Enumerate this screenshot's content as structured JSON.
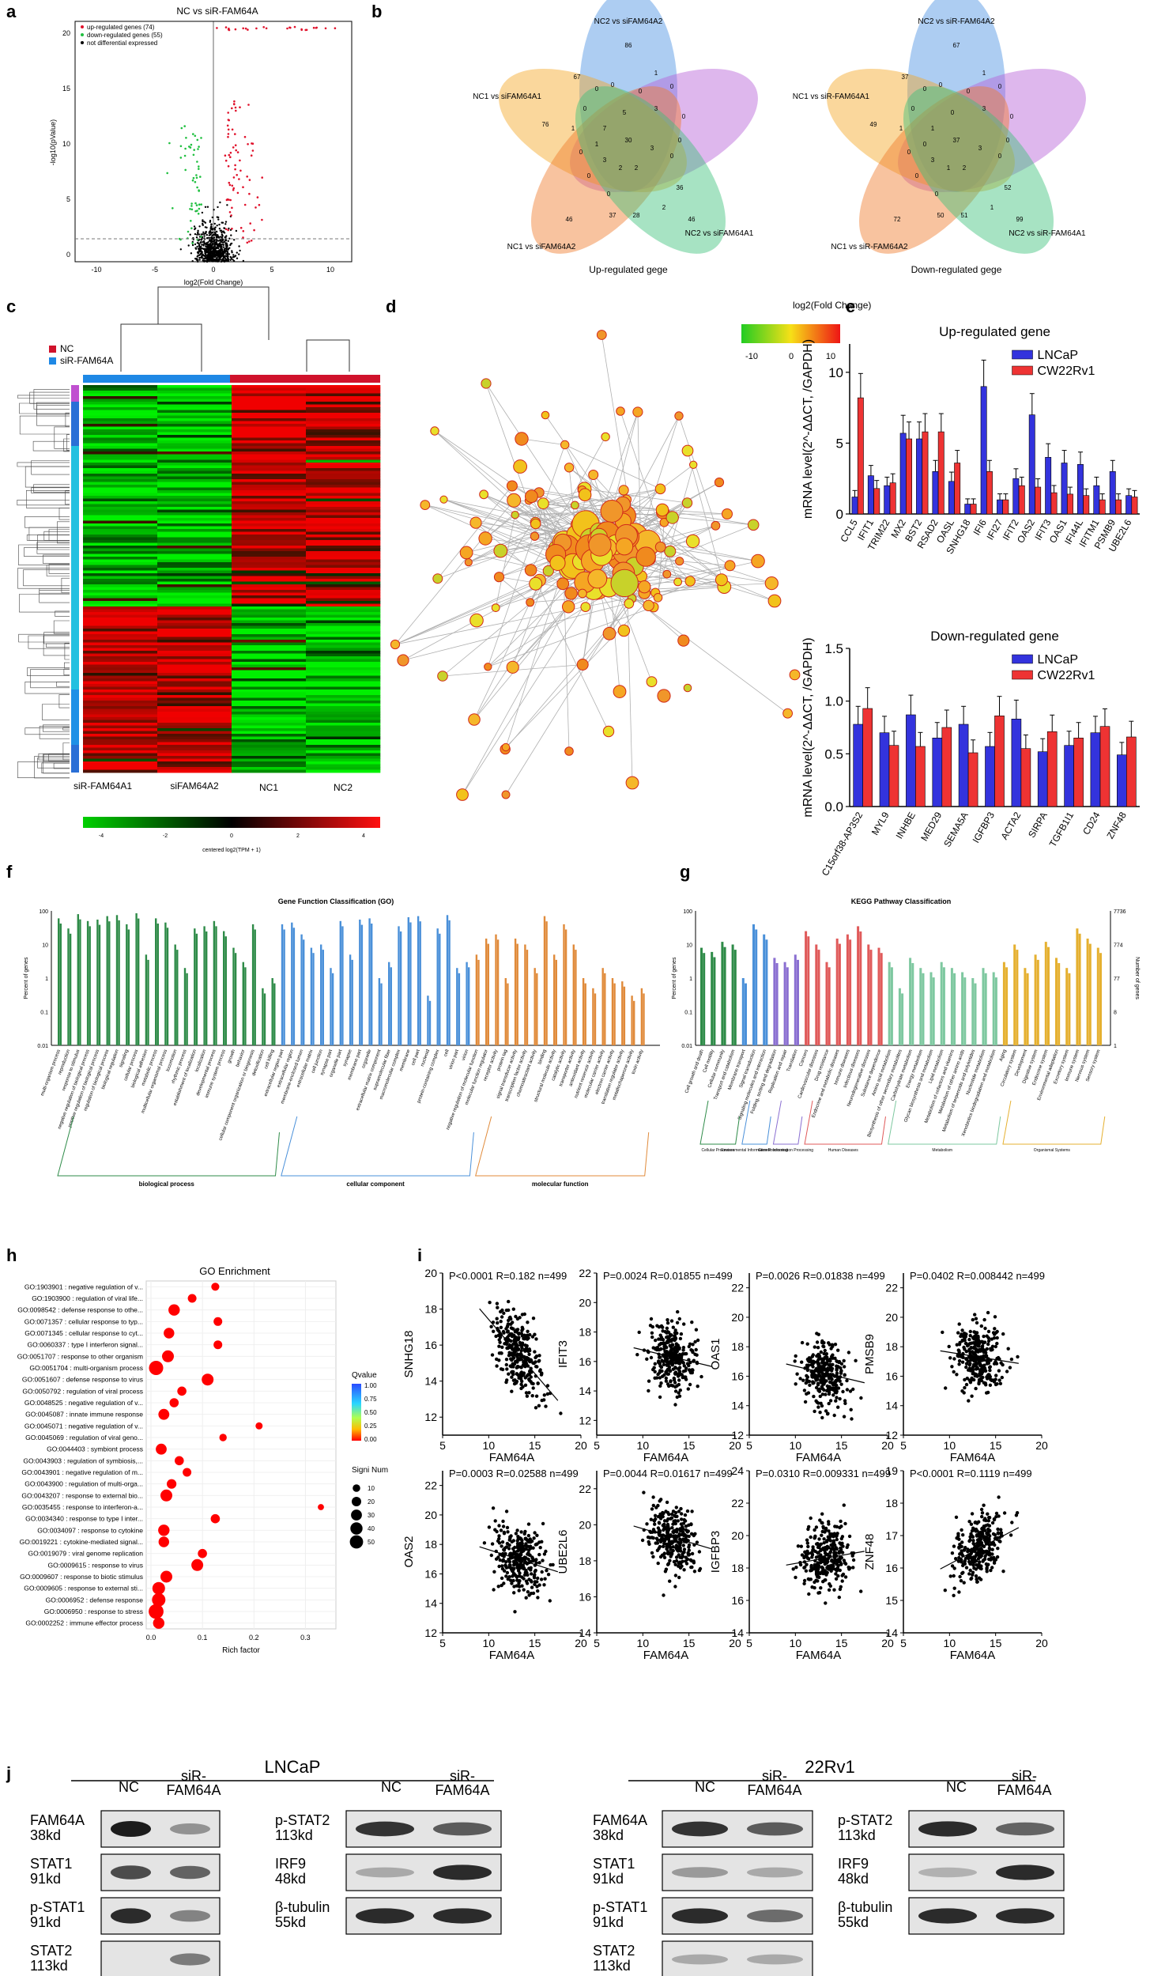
{
  "panel_letters": [
    "a",
    "b",
    "c",
    "d",
    "e",
    "f",
    "g",
    "h",
    "i",
    "j"
  ],
  "a": {
    "title": "NC vs siR-FAM64A",
    "legend": [
      "up-regulated genes (74)",
      "down-regulated genes (55)",
      "not differential expressed"
    ],
    "ylabel": "-log10(pValue)",
    "xlabel": "log2(Fold Change)",
    "xticks": [
      "-10",
      "-5",
      "0",
      "5",
      "10"
    ],
    "yticks": [
      "0",
      "5",
      "10",
      "15",
      "20"
    ],
    "colors": {
      "up": "#e0112b",
      "down": "#20c040",
      "ns": "#000000"
    }
  },
  "b": {
    "up": {
      "labels": [
        "NC2 vs siFAM64A2",
        "NC1 vs siFAM64A1",
        "NC1 vs siFAM64A2",
        "NC2 vs siFAM64A1"
      ],
      "numbers": [
        "86",
        "67",
        "76",
        "46",
        "46",
        "30",
        "1",
        "0",
        "0",
        "0",
        "0",
        "0",
        "1",
        "0",
        "0",
        "0",
        "2",
        "2",
        "3",
        "7",
        "36",
        "37",
        "28",
        "2",
        "0",
        "0",
        "0",
        "3",
        "3",
        "5",
        "1"
      ],
      "caption": "Up-regulated gege"
    },
    "down": {
      "labels": [
        "NC2 vs siR-FAM64A2",
        "NC1 vs siR-FAM64A1",
        "NC1 vs siR-FAM64A2",
        "NC2 vs siR-FAM64A1"
      ],
      "numbers": [
        "67",
        "37",
        "49",
        "72",
        "99",
        "37",
        "1",
        "0",
        "0",
        "0",
        "0",
        "0",
        "1",
        "0",
        "0",
        "0",
        "1",
        "2",
        "3",
        "1",
        "52",
        "50",
        "51",
        "1",
        "0",
        "0",
        "0",
        "3",
        "3",
        "0",
        "0"
      ],
      "caption": "Down-regulated gege"
    },
    "colors": [
      "#4a90e2",
      "#b65fd6",
      "#f5a623",
      "#f07b2a",
      "#3cc07a"
    ]
  },
  "c": {
    "legend": [
      "NC",
      "siR-FAM64A"
    ],
    "columns": [
      "siR-FAM64A1",
      "siFAM64A2",
      "NC1",
      "NC2"
    ],
    "colorbar_ticks": [
      "-4",
      "-2",
      "0",
      "2",
      "4"
    ],
    "colorbar_label": "centered log2(TPM + 1)",
    "colors": {
      "nc": "#d0122b",
      "sir": "#1e88e5"
    }
  },
  "d": {
    "legend_title": "log2(Fold Change)",
    "legend_ticks": [
      "-10",
      "0",
      "10"
    ]
  },
  "e": {
    "chart_data": [
      {
        "type": "bar",
        "title": "Up-regulated gene",
        "ylabel": "mRNA level(2^-ΔΔCT, /GAPDH)",
        "ylim": [
          0,
          12
        ],
        "yticks": [
          "0",
          "5",
          "10"
        ],
        "categories": [
          "CCL5",
          "IFIT1",
          "TRIM22",
          "MX2",
          "BST2",
          "RSAD2",
          "OASL",
          "SNHG18",
          "IFI6",
          "IFI27",
          "IFIT2",
          "OAS2",
          "IFIT3",
          "OAS1",
          "IFI44L",
          "IFITM1",
          "PSMB9",
          "UBE2L6"
        ],
        "series": [
          {
            "name": "LNCaP",
            "values": [
              1.2,
              2.7,
              2.0,
              5.7,
              5.3,
              3.0,
              2.3,
              0.7,
              9.0,
              1.0,
              2.5,
              7.0,
              4.0,
              3.6,
              3.5,
              2.0,
              3.0,
              1.3
            ]
          },
          {
            "name": "CW22Rv1",
            "values": [
              8.2,
              1.8,
              2.2,
              5.3,
              5.8,
              5.8,
              3.6,
              0.7,
              3.0,
              1.0,
              2.0,
              1.9,
              1.5,
              1.4,
              1.3,
              1.0,
              1.0,
              1.2
            ]
          }
        ],
        "colors": [
          "#3333dd",
          "#ee3333"
        ]
      },
      {
        "type": "bar",
        "title": "Down-regulated gene",
        "ylabel": "mRNA level(2^-ΔΔCT, /GAPDH)",
        "ylim": [
          0,
          1.5
        ],
        "yticks": [
          "0.0",
          "0.5",
          "1.0",
          "1.5"
        ],
        "categories": [
          "C15orf38-AP3S2",
          "MYL9",
          "INHBE",
          "MED29",
          "SEMA5A",
          "IGFBP3",
          "ACTA2",
          "SIRPA",
          "TGFB1I1",
          "CD24",
          "ZNF48"
        ],
        "series": [
          {
            "name": "LNCaP",
            "values": [
              0.78,
              0.7,
              0.87,
              0.65,
              0.78,
              0.57,
              0.83,
              0.52,
              0.58,
              0.7,
              0.49
            ]
          },
          {
            "name": "CW22Rv1",
            "values": [
              0.93,
              0.58,
              0.57,
              0.75,
              0.51,
              0.86,
              0.55,
              0.71,
              0.65,
              0.76,
              0.66
            ]
          }
        ],
        "colors": [
          "#3333dd",
          "#ee3333"
        ]
      }
    ]
  },
  "f": {
    "title": "Gene Function Classification (GO)",
    "ylabel": "Percent of genes",
    "yticks": [
      "100",
      "10",
      "1",
      "0.1",
      "0.01"
    ],
    "groups": [
      "biological process",
      "cellular component",
      "molecular function"
    ],
    "colors": [
      "#2e8b48",
      "#4a90d9",
      "#e08a3a"
    ],
    "bp_terms": [
      "multi-organism process",
      "reproduction",
      "response to stimulus",
      "negative regulation of biological process",
      "positive regulation of biological process",
      "regulation of biological process",
      "biological regulation",
      "signaling",
      "cellular process",
      "biological adhesion",
      "metabolic process",
      "multicellular organismal process",
      "locomotion",
      "rhythmic process",
      "establishment of localization",
      "localization",
      "developmental process",
      "immune system process",
      "growth",
      "behavior",
      "cellular component organization or biogenesis",
      "detoxification",
      "cell killing"
    ],
    "cc_terms": [
      "extracellular region part",
      "extracellular region",
      "membrane-enclosed lumen",
      "extracellular matrix",
      "cell junction",
      "synapse part",
      "organelle part",
      "synapse",
      "membrane part",
      "organelle",
      "extracellular matrix component",
      "supramolecular fiber",
      "macromolecular complex",
      "membrane",
      "cell part",
      "nucleoid",
      "protein-containing complex",
      "cell",
      "virion part",
      "virion"
    ],
    "mf_terms": [
      "negative regulation of molecular function",
      "molecular function regulator",
      "receptor activity",
      "protein tag",
      "signal transducer activity",
      "transcription factor activity",
      "chemoattractant activity",
      "binding",
      "structural molecule activity",
      "catalytic activity",
      "transporter activity",
      "antioxidant activity",
      "nutrient reservoir activity",
      "molecular carrier activity",
      "electron carrier activity",
      "translation regulator activity",
      "metallochaperone activity",
      "toxin activity"
    ],
    "bp_values": [
      60,
      30,
      80,
      50,
      55,
      70,
      75,
      40,
      85,
      5,
      60,
      45,
      10,
      2,
      30,
      35,
      50,
      25,
      8,
      3,
      40,
      0.5,
      1
    ],
    "cc_values": [
      40,
      45,
      20,
      8,
      10,
      2,
      50,
      5,
      55,
      60,
      1,
      3,
      35,
      65,
      70,
      0.3,
      30,
      75,
      2,
      3
    ],
    "mf_values": [
      5,
      15,
      20,
      1,
      15,
      10,
      2,
      70,
      5,
      40,
      10,
      1,
      0.5,
      2,
      1,
      0.8,
      0.3,
      0.5
    ]
  },
  "g": {
    "title": "KEGG Pathway Classification",
    "ylabel": "Percent of genes",
    "ylabel_right": "Number of genes",
    "yticks": [
      "100",
      "10",
      "1",
      "0.1",
      "0.01"
    ],
    "yticks_right": [
      "7736",
      "774",
      "77",
      "8",
      "1"
    ],
    "groups": [
      "Cellular Processes",
      "Environmental Information Processing",
      "Genetic Information Processing",
      "Human Diseases",
      "Metabolism",
      "Organismal Systems"
    ],
    "colors": [
      "#2e8b48",
      "#4a90d9",
      "#8a6fd1",
      "#e05a5a",
      "#7ec8a0",
      "#e5b030"
    ],
    "terms": [
      "Cell growth and death",
      "Cell motility",
      "Cellular community",
      "Transport and catabolism",
      "Membrane transport",
      "Signal transduction",
      "Signaling molecules and interaction",
      "Folding, sorting and degradation",
      "Replication and repair",
      "Translation",
      "Cancers",
      "Cardiovascular diseases",
      "Drug resistance",
      "Endocrine and metabolic diseases",
      "Immune diseases",
      "Infectious diseases",
      "Neurodegenerative diseases",
      "Substance dependence",
      "Amino acid metabolism",
      "Biosynthesis of other secondary metabolites",
      "Carbohydrate metabolism",
      "Energy metabolism",
      "Glycan biosynthesis and metabolism",
      "Lipid metabolism",
      "Metabolism of cofactors and vitamins",
      "Metabolism of other amino acids",
      "Metabolism of terpenoids and polyketides",
      "Nucleotide metabolism",
      "Xenobiotics biodegradation and metabolism",
      "Aging",
      "Circulatory system",
      "Development",
      "Digestive system",
      "Endocrine system",
      "Environmental adaptation",
      "Excretory system",
      "Immune system",
      "Nervous system",
      "Sensory system"
    ],
    "values": [
      8,
      6,
      12,
      10,
      1,
      40,
      20,
      4,
      3,
      5,
      25,
      10,
      3,
      15,
      20,
      35,
      10,
      8,
      3,
      0.5,
      4,
      2,
      1.5,
      3,
      2,
      1.5,
      1,
      2,
      1.5,
      3,
      10,
      2,
      5,
      12,
      4,
      2,
      30,
      15,
      8
    ]
  },
  "h": {
    "title": "GO Enrichment",
    "xlabel": "Rich factor",
    "xticks": [
      "0.0",
      "0.1",
      "0.2",
      "0.3"
    ],
    "qvalue_label": "Qvalue",
    "qvalue_ticks": [
      "1.00",
      "0.75",
      "0.50",
      "0.25",
      "0.00"
    ],
    "size_label": "Signi Num",
    "size_ticks": [
      "10",
      "20",
      "30",
      "40",
      "50"
    ],
    "terms": [
      "GO:1903901 : negative regulation of v...",
      "GO:1903900 : regulation of viral life...",
      "GO:0098542 : defense response to othe...",
      "GO:0071357 : cellular response to typ...",
      "GO:0071345 : cellular response to cyt...",
      "GO:0060337 : type I interferon signal...",
      "GO:0051707 : response to other organism",
      "GO:0051704 : multi-organism process",
      "GO:0051607 : defense response to virus",
      "GO:0050792 : regulation of viral process",
      "GO:0048525 : negative regulation of v...",
      "GO:0045087 : innate immune response",
      "GO:0045071 : negative regulation of v...",
      "GO:0045069 : regulation of viral geno...",
      "GO:0044403 : symbiont process",
      "GO:0043903 : regulation of symbiosis,...",
      "GO:0043901 : negative regulation of m...",
      "GO:0043900 : regulation of multi-orga...",
      "GO:0043207 : response to external bio...",
      "GO:0035455 : response to interferon-a...",
      "GO:0034340 : response to type I inter...",
      "GO:0034097 : response to cytokine",
      "GO:0019221 : cytokine-mediated signal...",
      "GO:0019079 : viral genome replication",
      "GO:0009615 : response to virus",
      "GO:0009607 : response to biotic stimulus",
      "GO:0009605 : response to external sti...",
      "GO:0006952 : defense response",
      "GO:0006950 : response to stress",
      "GO:0002252 : immune effector process"
    ],
    "rich": [
      0.125,
      0.08,
      0.045,
      0.13,
      0.035,
      0.13,
      0.033,
      0.01,
      0.11,
      0.06,
      0.045,
      0.025,
      0.21,
      0.14,
      0.02,
      0.055,
      0.07,
      0.04,
      0.03,
      0.33,
      0.125,
      0.025,
      0.025,
      0.1,
      0.09,
      0.03,
      0.015,
      0.015,
      0.01,
      0.015
    ],
    "num": [
      8,
      10,
      22,
      10,
      18,
      10,
      25,
      40,
      25,
      12,
      12,
      20,
      5,
      6,
      20,
      12,
      10,
      14,
      25,
      3,
      12,
      22,
      18,
      12,
      25,
      25,
      30,
      35,
      45,
      22
    ]
  },
  "i": {
    "xlabel": "FAM64A",
    "plots": [
      {
        "gene": "SNHG18",
        "stat": "P<0.0001  R=0.182  n=499",
        "yticks": [
          "12",
          "14",
          "16",
          "18",
          "20"
        ],
        "ylim": [
          11,
          20
        ],
        "xticks": [
          "5",
          "10",
          "15",
          "20"
        ],
        "slope": -0.6,
        "center": 15.5
      },
      {
        "gene": "IFIT3",
        "stat": "P=0.0024  R=0.01855  n=499",
        "yticks": [
          "12",
          "14",
          "16",
          "18",
          "20",
          "22"
        ],
        "ylim": [
          11,
          22
        ],
        "xticks": [
          "5",
          "10",
          "15",
          "20"
        ],
        "slope": -0.15,
        "center": 16.3
      },
      {
        "gene": "OAS1",
        "stat": "P=0.0026  R=0.01838  n=499",
        "yticks": [
          "12",
          "14",
          "16",
          "18",
          "20",
          "22"
        ],
        "ylim": [
          12,
          23
        ],
        "xticks": [
          "5",
          "10",
          "15",
          "20"
        ],
        "slope": -0.15,
        "center": 16.2
      },
      {
        "gene": "PMSB9",
        "stat": "P=0.0402  R=0.008442  n=499",
        "yticks": [
          "12",
          "14",
          "16",
          "18",
          "20",
          "22"
        ],
        "ylim": [
          12,
          23
        ],
        "xticks": [
          "5",
          "10",
          "15",
          "20"
        ],
        "slope": -0.1,
        "center": 17.3
      },
      {
        "gene": "OAS2",
        "stat": "P=0.0003  R=0.02588  n=499",
        "yticks": [
          "12",
          "14",
          "16",
          "18",
          "20",
          "22"
        ],
        "ylim": [
          12,
          23
        ],
        "xticks": [
          "5",
          "10",
          "15",
          "20"
        ],
        "slope": -0.2,
        "center": 17.0
      },
      {
        "gene": "UBE2L6",
        "stat": "P=0.0044  R=0.01617  n=499",
        "yticks": [
          "14",
          "16",
          "18",
          "20",
          "22"
        ],
        "ylim": [
          14,
          23
        ],
        "xticks": [
          "5",
          "10",
          "15",
          "20"
        ],
        "slope": -0.15,
        "center": 19.3
      },
      {
        "gene": "IGFBP3",
        "stat": "P=0.0310  R=0.009331  n=499",
        "yticks": [
          "14",
          "16",
          "18",
          "20",
          "22",
          "24"
        ],
        "ylim": [
          14,
          24
        ],
        "xticks": [
          "5",
          "10",
          "15",
          "20"
        ],
        "slope": 0.1,
        "center": 18.6
      },
      {
        "gene": "ZNF48",
        "stat": "P<0.0001  R=0.1119  n=499",
        "yticks": [
          "14",
          "15",
          "16",
          "17",
          "18",
          "19"
        ],
        "ylim": [
          14,
          19
        ],
        "xticks": [
          "5",
          "10",
          "15",
          "20"
        ],
        "slope": 0.15,
        "center": 16.6
      }
    ]
  },
  "j": {
    "lncap": "LNCaP",
    "rv1": "22Rv1",
    "nc": "NC",
    "sir": "siR-FAM64A",
    "left_rows": [
      {
        "name": "FAM64A",
        "kd": "38kd"
      },
      {
        "name": "STAT1",
        "kd": "91kd"
      },
      {
        "name": "p-STAT1",
        "kd": "91kd"
      },
      {
        "name": "STAT2",
        "kd": "113kd"
      }
    ],
    "right_rows": [
      {
        "name": "p-STAT2",
        "kd": "113kd"
      },
      {
        "name": "IRF9",
        "kd": "48kd"
      },
      {
        "name": "β-tubulin",
        "kd": "55kd"
      }
    ]
  }
}
